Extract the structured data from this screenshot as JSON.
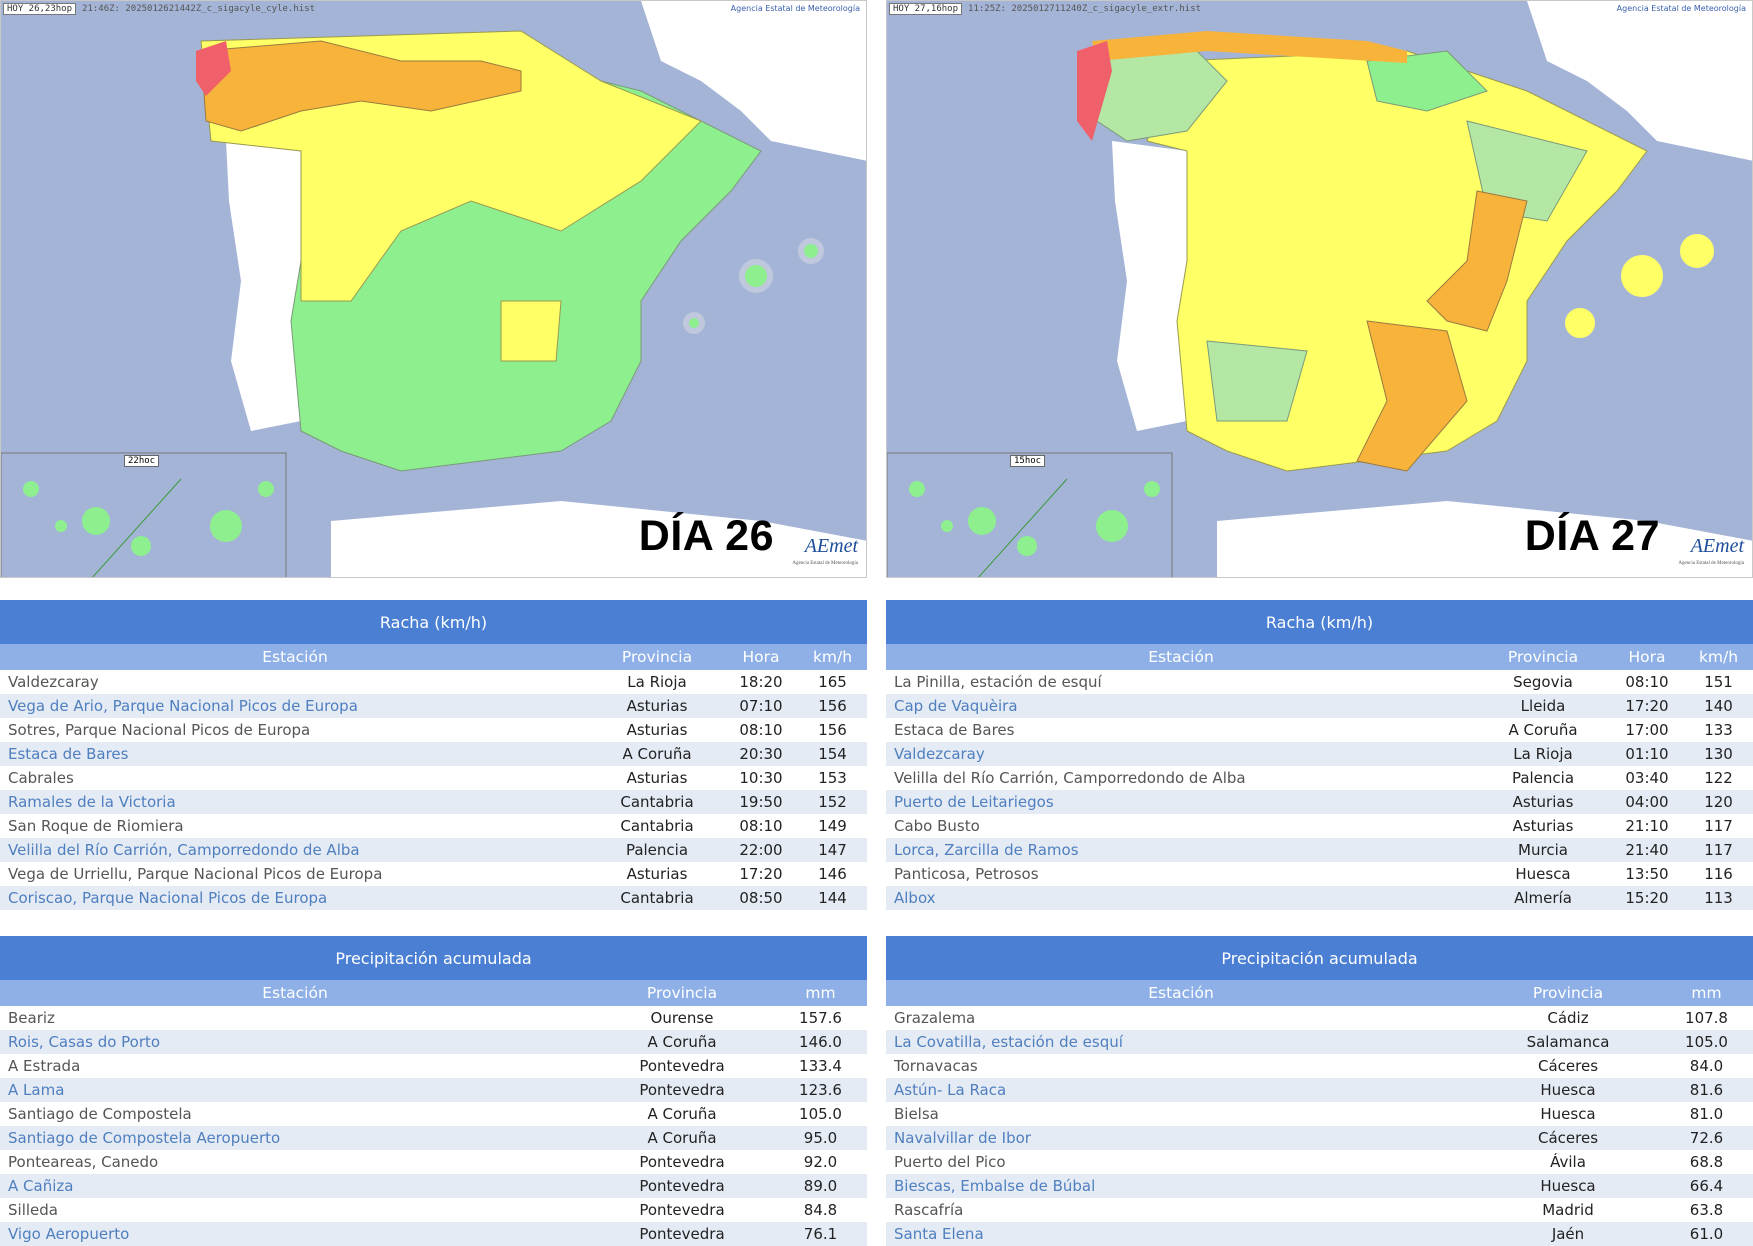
{
  "panels": [
    {
      "header_box": "HOY 26,23hop",
      "header_file": "21:46Z: 2025012621442Z_c_sigacyle_cyle.hist",
      "agency": "Agencia Estatal de Meteorología",
      "day_label": "DÍA 26",
      "canary_time": "22hoc",
      "logo": "AEmet",
      "logo_sub": "Agencia Estatal de Meteorología",
      "wind_table": {
        "title": "Racha (km/h)",
        "columns": [
          "Estación",
          "Provincia",
          "Hora",
          "km/h"
        ],
        "rows": [
          [
            "Valdezcaray",
            "La Rioja",
            "18:20",
            "165"
          ],
          [
            "Vega de Ario, Parque Nacional Picos de Europa",
            "Asturias",
            "07:10",
            "156"
          ],
          [
            "Sotres, Parque Nacional Picos de Europa",
            "Asturias",
            "08:10",
            "156"
          ],
          [
            "Estaca de Bares",
            "A Coruña",
            "20:30",
            "154"
          ],
          [
            "Cabrales",
            "Asturias",
            "10:30",
            "153"
          ],
          [
            "Ramales de la Victoria",
            "Cantabria",
            "19:50",
            "152"
          ],
          [
            "San Roque de Riomiera",
            "Cantabria",
            "08:10",
            "149"
          ],
          [
            "Velilla del Río Carrión, Camporredondo de Alba",
            "Palencia",
            "22:00",
            "147"
          ],
          [
            "Vega de Urriellu, Parque Nacional Picos de Europa",
            "Asturias",
            "17:20",
            "146"
          ],
          [
            "Coriscao, Parque Nacional Picos de Europa",
            "Cantabria",
            "08:50",
            "144"
          ]
        ]
      },
      "precip_table": {
        "title": "Precipitación acumulada",
        "columns": [
          "Estación",
          "Provincia",
          "mm"
        ],
        "rows": [
          [
            "Beariz",
            "Ourense",
            "157.6"
          ],
          [
            "Rois, Casas do Porto",
            "A Coruña",
            "146.0"
          ],
          [
            "A Estrada",
            "Pontevedra",
            "133.4"
          ],
          [
            "A Lama",
            "Pontevedra",
            "123.6"
          ],
          [
            "Santiago de Compostela",
            "A Coruña",
            "105.0"
          ],
          [
            "Santiago de Compostela Aeropuerto",
            "A Coruña",
            "95.0"
          ],
          [
            "Ponteareas, Canedo",
            "Pontevedra",
            "92.0"
          ],
          [
            "A Cañiza",
            "Pontevedra",
            "89.0"
          ],
          [
            "Silleda",
            "Pontevedra",
            "84.8"
          ],
          [
            "Vigo Aeropuerto",
            "Pontevedra",
            "76.1"
          ]
        ]
      }
    },
    {
      "header_box": "HOY 27,16hop",
      "header_file": "11:25Z: 2025012711240Z_c_sigacyle_extr.hist",
      "agency": "Agencia Estatal de Meteorología",
      "day_label": "DÍA 27",
      "canary_time": "15hoc",
      "logo": "AEmet",
      "logo_sub": "Agencia Estatal de Meteorología",
      "wind_table": {
        "title": "Racha (km/h)",
        "columns": [
          "Estación",
          "Provincia",
          "Hora",
          "km/h"
        ],
        "rows": [
          [
            "La Pinilla, estación de esquí",
            "Segovia",
            "08:10",
            "151"
          ],
          [
            "Cap de Vaquèira",
            "Lleida",
            "17:20",
            "140"
          ],
          [
            "Estaca de Bares",
            "A Coruña",
            "17:00",
            "133"
          ],
          [
            "Valdezcaray",
            "La Rioja",
            "01:10",
            "130"
          ],
          [
            "Velilla del Río Carrión, Camporredondo de Alba",
            "Palencia",
            "03:40",
            "122"
          ],
          [
            "Puerto de Leitariegos",
            "Asturias",
            "04:00",
            "120"
          ],
          [
            "Cabo Busto",
            "Asturias",
            "21:10",
            "117"
          ],
          [
            "Lorca, Zarcilla de Ramos",
            "Murcia",
            "21:40",
            "117"
          ],
          [
            "Panticosa, Petrosos",
            "Huesca",
            "13:50",
            "116"
          ],
          [
            "Albox",
            "Almería",
            "15:20",
            "113"
          ]
        ]
      },
      "precip_table": {
        "title": "Precipitación acumulada",
        "columns": [
          "Estación",
          "Provincia",
          "mm"
        ],
        "rows": [
          [
            "Grazalema",
            "Cádiz",
            "107.8"
          ],
          [
            "La Covatilla, estación de esquí",
            "Salamanca",
            "105.0"
          ],
          [
            "Tornavacas",
            "Cáceres",
            "84.0"
          ],
          [
            "Astún- La Raca",
            "Huesca",
            "81.6"
          ],
          [
            "Bielsa",
            "Huesca",
            "81.0"
          ],
          [
            "Navalvillar de Ibor",
            "Cáceres",
            "72.6"
          ],
          [
            "Puerto del Pico",
            "Ávila",
            "68.8"
          ],
          [
            "Biescas, Embalse de Búbal",
            "Huesca",
            "66.4"
          ],
          [
            "Rascafría",
            "Madrid",
            "63.8"
          ],
          [
            "Santa Elena",
            "Jaén",
            "61.0"
          ]
        ]
      }
    }
  ],
  "colors": {
    "sea": "#a4b4d6",
    "land_other": "#ffffff",
    "green": "#8eef8e",
    "yellow": "#ffff66",
    "orange": "#f7b33a",
    "red": "#f0606a",
    "table_title": "#4a7fd4",
    "table_header": "#8eb0e6",
    "row_alt": "#e4ebf4"
  }
}
